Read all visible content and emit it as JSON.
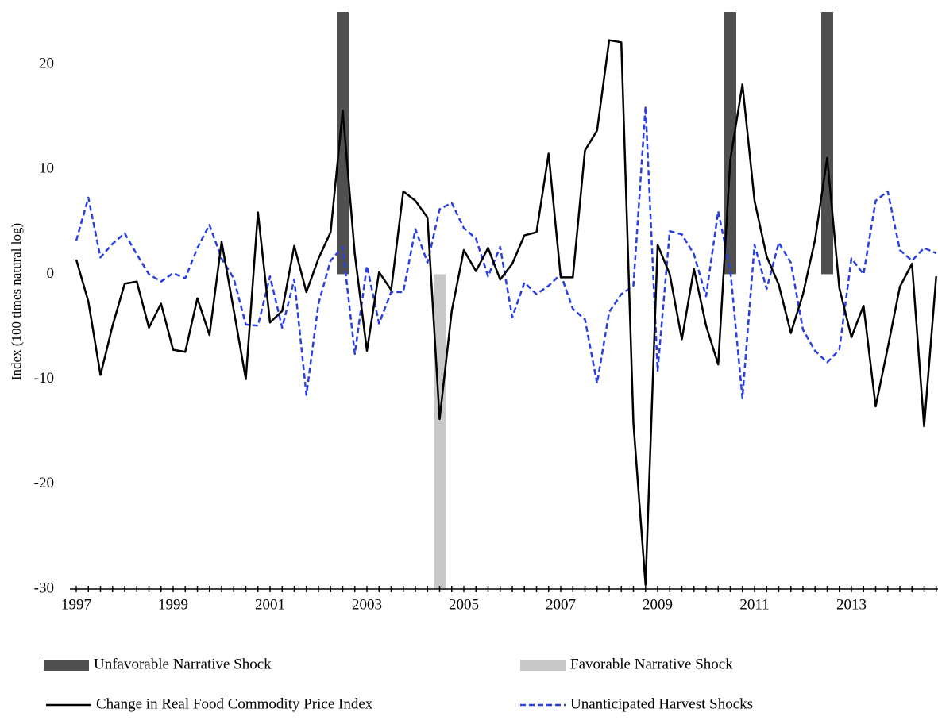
{
  "chart_data": {
    "type": "combo",
    "y_label": "Index (100 times natural log)",
    "ylim": [
      -30,
      25
    ],
    "yticks": [
      -30,
      -20,
      -10,
      0,
      10,
      20
    ],
    "categories": [
      "1997",
      null,
      null,
      null,
      null,
      null,
      null,
      null,
      "1999",
      null,
      null,
      null,
      null,
      null,
      null,
      null,
      "2001",
      null,
      null,
      null,
      null,
      null,
      null,
      null,
      "2003",
      null,
      null,
      null,
      null,
      null,
      null,
      null,
      "2005",
      null,
      null,
      null,
      null,
      null,
      null,
      null,
      "2007",
      null,
      null,
      null,
      null,
      null,
      null,
      null,
      "2009",
      null,
      null,
      null,
      null,
      null,
      null,
      null,
      "2011",
      null,
      null,
      null,
      null,
      null,
      null,
      null,
      "2013",
      null,
      null,
      null,
      null,
      null,
      null,
      null
    ],
    "series": [
      {
        "name": "Unfavorable Narrative Shock",
        "kind": "bar",
        "color": "#505050",
        "values": [
          null,
          null,
          null,
          null,
          null,
          null,
          null,
          null,
          null,
          null,
          null,
          null,
          null,
          null,
          null,
          null,
          null,
          null,
          null,
          null,
          null,
          null,
          25,
          null,
          null,
          null,
          null,
          null,
          null,
          null,
          null,
          null,
          null,
          null,
          null,
          null,
          null,
          null,
          null,
          null,
          null,
          null,
          null,
          null,
          null,
          null,
          null,
          null,
          null,
          null,
          null,
          null,
          null,
          null,
          25,
          null,
          null,
          null,
          null,
          null,
          null,
          null,
          25,
          null,
          null,
          null,
          null,
          null,
          null,
          null,
          null,
          null
        ]
      },
      {
        "name": "Favorable Narrative Shock",
        "kind": "bar",
        "color": "#c8c8c8",
        "values": [
          null,
          null,
          null,
          null,
          null,
          null,
          null,
          null,
          null,
          null,
          null,
          null,
          null,
          null,
          null,
          null,
          null,
          null,
          null,
          null,
          null,
          null,
          null,
          null,
          null,
          null,
          null,
          null,
          null,
          null,
          -30,
          null,
          null,
          null,
          null,
          null,
          null,
          null,
          null,
          null,
          null,
          null,
          null,
          null,
          null,
          null,
          null,
          null,
          null,
          null,
          null,
          null,
          null,
          null,
          null,
          null,
          null,
          null,
          null,
          null,
          null,
          null,
          null,
          null,
          null,
          null,
          null,
          null,
          null,
          null,
          null,
          null
        ]
      },
      {
        "name": "Change in Real Food Commodity Price Index",
        "kind": "line",
        "dash": false,
        "color": "#000000",
        "values": [
          1.4,
          -2.6,
          -9.6,
          -4.9,
          -0.9,
          -0.7,
          -5.1,
          -2.8,
          -7.2,
          -7.4,
          -2.3,
          -5.8,
          3.1,
          -3.4,
          -10.0,
          5.9,
          -4.6,
          -3.5,
          2.7,
          -1.7,
          1.5,
          4.0,
          15.6,
          1.9,
          -7.3,
          0.2,
          -1.5,
          7.9,
          7.0,
          5.4,
          -13.8,
          -3.5,
          2.3,
          0.3,
          2.5,
          -0.5,
          1.0,
          3.7,
          4.0,
          11.5,
          -0.3,
          -0.3,
          11.8,
          13.7,
          22.3,
          22.1,
          -14.2,
          -29.6,
          2.8,
          0.0,
          -6.2,
          0.5,
          -4.9,
          -8.6,
          10.9,
          18.1,
          7.0,
          1.7,
          -1.0,
          -5.6,
          -1.9,
          3.3,
          11.1,
          -1.3,
          -6.0,
          -3.0,
          -12.6,
          -7.0,
          -1.2,
          1.0,
          -14.5,
          -0.2
        ]
      },
      {
        "name": "Unanticipated Harvest Shocks",
        "kind": "line",
        "dash": true,
        "color": "#2a3fe0",
        "values": [
          3.2,
          7.3,
          1.6,
          2.9,
          3.9,
          1.9,
          0.0,
          -0.7,
          0.1,
          -0.4,
          2.5,
          4.7,
          1.5,
          -0.4,
          -4.8,
          -4.9,
          -0.2,
          -5.1,
          -0.5,
          -11.5,
          -2.8,
          1.3,
          2.6,
          -7.6,
          0.8,
          -4.7,
          -1.7,
          -1.7,
          4.3,
          1.1,
          6.2,
          6.8,
          4.4,
          3.4,
          -0.2,
          2.6,
          -4.1,
          -0.8,
          -1.9,
          -1.1,
          0.0,
          -3.3,
          -4.3,
          -10.4,
          -3.6,
          -1.9,
          -1.1,
          16.0,
          -9.2,
          4.1,
          3.8,
          1.9,
          -2.1,
          6.0,
          0.4,
          -11.8,
          2.8,
          -1.4,
          3.0,
          1.1,
          -5.3,
          -7.3,
          -8.4,
          -7.2,
          1.5,
          0.0,
          7.0,
          7.9,
          2.3,
          1.3,
          2.5,
          2.0
        ]
      }
    ]
  }
}
